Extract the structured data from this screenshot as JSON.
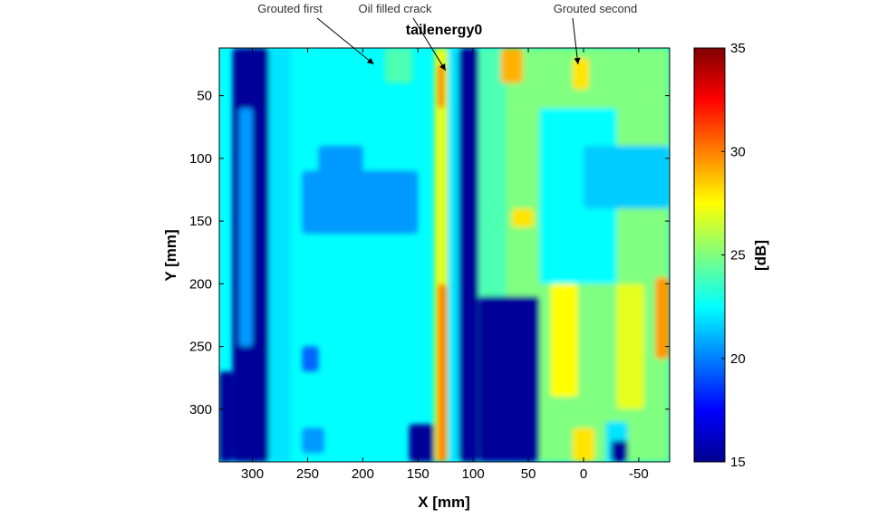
{
  "chart_data": {
    "type": "heatmap",
    "title": "tailenergy0",
    "xlabel": "X [mm]",
    "ylabel": "Y [mm]",
    "xlim": [
      330,
      -78
    ],
    "ylim": [
      12,
      342
    ],
    "x_ticks": [
      300,
      250,
      200,
      150,
      100,
      50,
      0,
      -50
    ],
    "y_ticks": [
      50,
      100,
      150,
      200,
      250,
      300
    ],
    "colorbar": {
      "label": "[dB]",
      "range": [
        15,
        35
      ],
      "ticks": [
        15,
        20,
        25,
        30,
        35
      ],
      "colormap": "jet"
    },
    "background_db": 22.5,
    "regions": [
      {
        "x": [
          330,
          318
        ],
        "y": [
          270,
          342
        ],
        "db": 15.5
      },
      {
        "x": [
          318,
          285
        ],
        "y": [
          12,
          342
        ],
        "db": 15.5
      },
      {
        "x": [
          312,
          300
        ],
        "y": [
          60,
          250
        ],
        "db": 20.5
      },
      {
        "x": [
          285,
          265
        ],
        "y": [
          12,
          342
        ],
        "db": 22
      },
      {
        "x": [
          255,
          150
        ],
        "y": [
          110,
          160
        ],
        "db": 20.5
      },
      {
        "x": [
          240,
          200
        ],
        "y": [
          90,
          120
        ],
        "db": 20.5
      },
      {
        "x": [
          255,
          240
        ],
        "y": [
          250,
          270
        ],
        "db": 19.5
      },
      {
        "x": [
          255,
          235
        ],
        "y": [
          315,
          335
        ],
        "db": 20.5
      },
      {
        "x": [
          180,
          155
        ],
        "y": [
          12,
          40
        ],
        "db": 24
      },
      {
        "x": [
          158,
          125
        ],
        "y": [
          312,
          342
        ],
        "db": 15.5
      },
      {
        "x": [
          135,
          123
        ],
        "y": [
          12,
          342
        ],
        "db": 27
      },
      {
        "x": [
          132,
          126
        ],
        "y": [
          25,
          60
        ],
        "db": 30
      },
      {
        "x": [
          132,
          124
        ],
        "y": [
          200,
          342
        ],
        "db": 30
      },
      {
        "x": [
          122,
          113
        ],
        "y": [
          12,
          342
        ],
        "db": 22
      },
      {
        "x": [
          113,
          95
        ],
        "y": [
          12,
          342
        ],
        "db": 15.5
      },
      {
        "x": [
          95,
          -78
        ],
        "y": [
          12,
          342
        ],
        "db": 25
      },
      {
        "x": [
          95,
          70
        ],
        "y": [
          12,
          342
        ],
        "db": 24
      },
      {
        "x": [
          75,
          55
        ],
        "y": [
          12,
          40
        ],
        "db": 29
      },
      {
        "x": [
          65,
          45
        ],
        "y": [
          140,
          155
        ],
        "db": 28
      },
      {
        "x": [
          40,
          -30
        ],
        "y": [
          60,
          200
        ],
        "db": 22.5
      },
      {
        "x": [
          0,
          -78
        ],
        "y": [
          90,
          140
        ],
        "db": 21.5
      },
      {
        "x": [
          10,
          -5
        ],
        "y": [
          20,
          45
        ],
        "db": 28
      },
      {
        "x": [
          95,
          40
        ],
        "y": [
          210,
          342
        ],
        "db": 15.5
      },
      {
        "x": [
          30,
          5
        ],
        "y": [
          200,
          290
        ],
        "db": 27.5
      },
      {
        "x": [
          -30,
          -55
        ],
        "y": [
          200,
          300
        ],
        "db": 27
      },
      {
        "x": [
          -65,
          -78
        ],
        "y": [
          195,
          260
        ],
        "db": 29.5
      },
      {
        "x": [
          10,
          -10
        ],
        "y": [
          315,
          342
        ],
        "db": 28
      },
      {
        "x": [
          -20,
          -40
        ],
        "y": [
          310,
          342
        ],
        "db": 22
      },
      {
        "x": [
          -25,
          -40
        ],
        "y": [
          325,
          342
        ],
        "db": 15.5
      }
    ],
    "annotations": [
      {
        "text": "Grouted first",
        "x": 190,
        "y": 25
      },
      {
        "text": "Oil filled crack",
        "x": 125,
        "y": 30
      },
      {
        "text": "Grouted second",
        "x": 5,
        "y": 25
      }
    ]
  }
}
